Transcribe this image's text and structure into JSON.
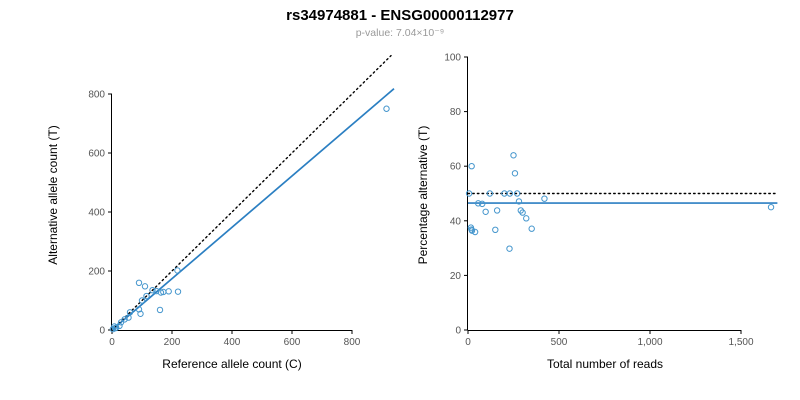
{
  "title": "rs34974881 - ENSG00000112977",
  "subtitle": "p-value: 7.04×10⁻⁹",
  "style": {
    "point_color": "#4596cd",
    "fit_line_color": "#2b7fc2",
    "identity_line_color": "#000000",
    "axis_color": "#000000",
    "tick_label_color": "#555555",
    "subtitle_color": "#999999"
  },
  "chart_data": [
    {
      "id": "allele-counts",
      "type": "scatter",
      "title": "",
      "xlabel": "Reference allele count (C)",
      "ylabel": "Alternative allele count (T)",
      "xlim": [
        0,
        950
      ],
      "ylim": [
        0,
        930
      ],
      "grid": false,
      "legend": "none",
      "xticks": [
        0,
        200,
        400,
        600,
        800
      ],
      "xtick_labels": [
        "0",
        "200",
        "400",
        "600",
        "800"
      ],
      "yticks": [
        0,
        200,
        400,
        600,
        800
      ],
      "ytick_labels": [
        "0",
        "200",
        "400",
        "600",
        "800"
      ],
      "points": [
        [
          3,
          3
        ],
        [
          8,
          12
        ],
        [
          10,
          6
        ],
        [
          12,
          7
        ],
        [
          14,
          8
        ],
        [
          25,
          14
        ],
        [
          30,
          26
        ],
        [
          42,
          36
        ],
        [
          55,
          42
        ],
        [
          60,
          60
        ],
        [
          90,
          70
        ],
        [
          95,
          55
        ],
        [
          100,
          100
        ],
        [
          90,
          160
        ],
        [
          110,
          148
        ],
        [
          115,
          115
        ],
        [
          160,
          68
        ],
        [
          135,
          135
        ],
        [
          148,
          132
        ],
        [
          163,
          127
        ],
        [
          171,
          129
        ],
        [
          189,
          131
        ],
        [
          220,
          130
        ],
        [
          218,
          202
        ],
        [
          915,
          750
        ]
      ],
      "lines": [
        {
          "name": "regression-fit",
          "style": "solid",
          "color_key": "fit_line_color",
          "x1": 0,
          "y1": 0,
          "x2": 940,
          "y2": 818
        },
        {
          "name": "identity",
          "style": "dotted",
          "color_key": "identity_line_color",
          "x1": 0,
          "y1": 0,
          "x2": 930,
          "y2": 930
        }
      ]
    },
    {
      "id": "percentage-vs-reads",
      "type": "scatter",
      "title": "",
      "xlabel": "Total number of reads",
      "ylabel": "Percentage alternative (T)",
      "xlim": [
        0,
        1750
      ],
      "ylim": [
        0,
        100
      ],
      "grid": false,
      "legend": "none",
      "xticks": [
        0,
        500,
        1000,
        1500
      ],
      "xtick_labels": [
        "0",
        "500",
        "1,000",
        "1,500"
      ],
      "yticks": [
        0,
        20,
        40,
        60,
        80,
        100
      ],
      "ytick_labels": [
        "0",
        "20",
        "40",
        "60",
        "80",
        "100"
      ],
      "points": [
        [
          6,
          50.0
        ],
        [
          20,
          60.0
        ],
        [
          16,
          37.5
        ],
        [
          19,
          36.8
        ],
        [
          22,
          36.4
        ],
        [
          39,
          35.9
        ],
        [
          56,
          46.4
        ],
        [
          78,
          46.2
        ],
        [
          97,
          43.3
        ],
        [
          120,
          50.0
        ],
        [
          160,
          43.8
        ],
        [
          150,
          36.7
        ],
        [
          200,
          50.0
        ],
        [
          250,
          64.0
        ],
        [
          258,
          57.4
        ],
        [
          230,
          50.0
        ],
        [
          228,
          29.8
        ],
        [
          270,
          50.0
        ],
        [
          280,
          47.1
        ],
        [
          290,
          43.8
        ],
        [
          300,
          43.0
        ],
        [
          320,
          40.9
        ],
        [
          350,
          37.1
        ],
        [
          420,
          48.1
        ],
        [
          1665,
          45.0
        ]
      ],
      "lines": [
        {
          "name": "expected-50pct",
          "style": "dotted",
          "color_key": "identity_line_color",
          "x1": 0,
          "y1": 50,
          "x2": 1700,
          "y2": 50
        },
        {
          "name": "observed-mean",
          "style": "solid",
          "color_key": "fit_line_color",
          "x1": 0,
          "y1": 46.5,
          "x2": 1700,
          "y2": 46.5
        }
      ]
    }
  ]
}
